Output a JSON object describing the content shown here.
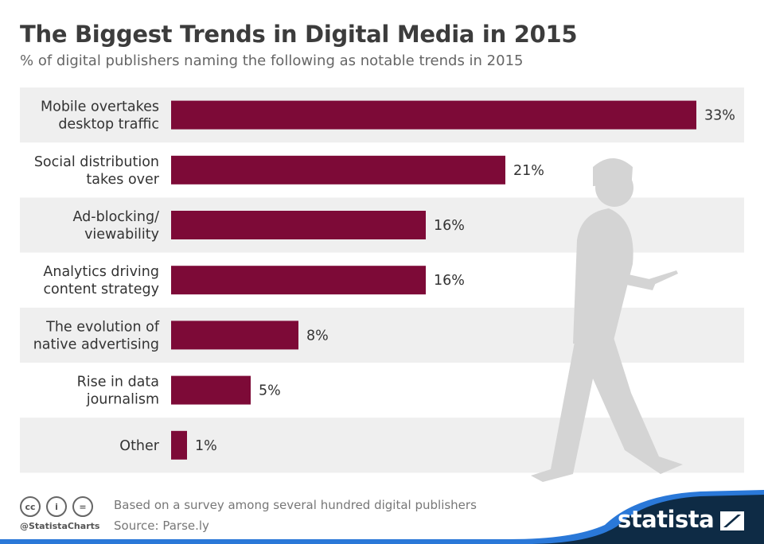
{
  "header": {
    "title": "The Biggest Trends in Digital Media in 2015",
    "subtitle": "% of digital publishers naming the following as notable trends in 2015"
  },
  "chart_data": {
    "type": "bar",
    "orientation": "horizontal",
    "categories": [
      [
        "Mobile overtakes",
        "desktop traffic"
      ],
      [
        "Social distribution",
        "takes over"
      ],
      [
        "Ad-blocking/",
        "viewability"
      ],
      [
        "Analytics driving",
        "content strategy"
      ],
      [
        "The evolution of",
        "native advertising"
      ],
      [
        "Rise in data",
        "journalism"
      ],
      [
        "Other"
      ]
    ],
    "values": [
      33,
      21,
      16,
      16,
      8,
      5,
      1
    ],
    "labels": [
      "33%",
      "21%",
      "16%",
      "16%",
      "8%",
      "5%",
      "1%"
    ],
    "unit": "%",
    "bar_color": "#7d0a37",
    "band_color": "#efefef",
    "grid": false
  },
  "footer": {
    "note": "Based on a survey among several hundred digital publishers",
    "source": "Source: Parse.ly",
    "handle": "@StatistaCharts",
    "logo": "statista",
    "cc_icons": [
      "cc-icon",
      "by-icon",
      "nd-icon"
    ]
  },
  "colors": {
    "navy": "#0e2b45",
    "blue": "#2a78d8"
  }
}
